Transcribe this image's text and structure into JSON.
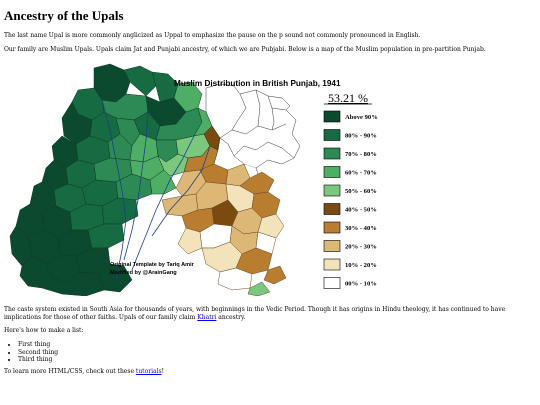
{
  "page": {
    "title": "Ancestry of the Upals",
    "intro_1": "The last name Upal is more commonly anglicized as Uppal to emphasize the pause on the p sound not commonly pronounced in English.",
    "intro_2": "Our family are Muslim Upals. Upals claim Jat and Punjabi ancestry, of which we are Pubjabi. Below is a map of the Muslim population in pre-partition Punjab.",
    "caption_pre": "The caste system existed in South Asia for thousands of years, with beginnings in the Vedic Period. Though it has origins in Hindu theology, it has continued to have implications for those of other faiths. Upals of our family claim ",
    "caption_link": "Khatri",
    "caption_post": " ancestry.",
    "list_intro": "Here's how to make a list:",
    "list_items": [
      "First thing",
      "Second thing",
      "Third thing"
    ],
    "footer_pre": "To learn more HTML/CSS, check out these ",
    "footer_link": "tutorials",
    "footer_post": "!"
  },
  "map": {
    "title": "Muslim Distribution in British Punjab, 1941",
    "total": "53.21 %",
    "credit_1": "Original Template by Tariq Amir",
    "credit_2": "Modified by @ArainGang",
    "legend": [
      {
        "label": "Above 90%",
        "color": "#0b4a2f"
      },
      {
        "label": "80% - 90%",
        "color": "#166b43"
      },
      {
        "label": "70% - 80%",
        "color": "#2d8a55"
      },
      {
        "label": "60% - 70%",
        "color": "#4fae66"
      },
      {
        "label": "50% - 60%",
        "color": "#7cc77f"
      },
      {
        "label": "40% - 50%",
        "color": "#7a4a10"
      },
      {
        "label": "30% - 40%",
        "color": "#b97d30"
      },
      {
        "label": "20% - 30%",
        "color": "#dcb776"
      },
      {
        "label": "10% - 20%",
        "color": "#f3e3bb"
      },
      {
        "label": "00% - 10%",
        "color": "#ffffff"
      }
    ]
  }
}
